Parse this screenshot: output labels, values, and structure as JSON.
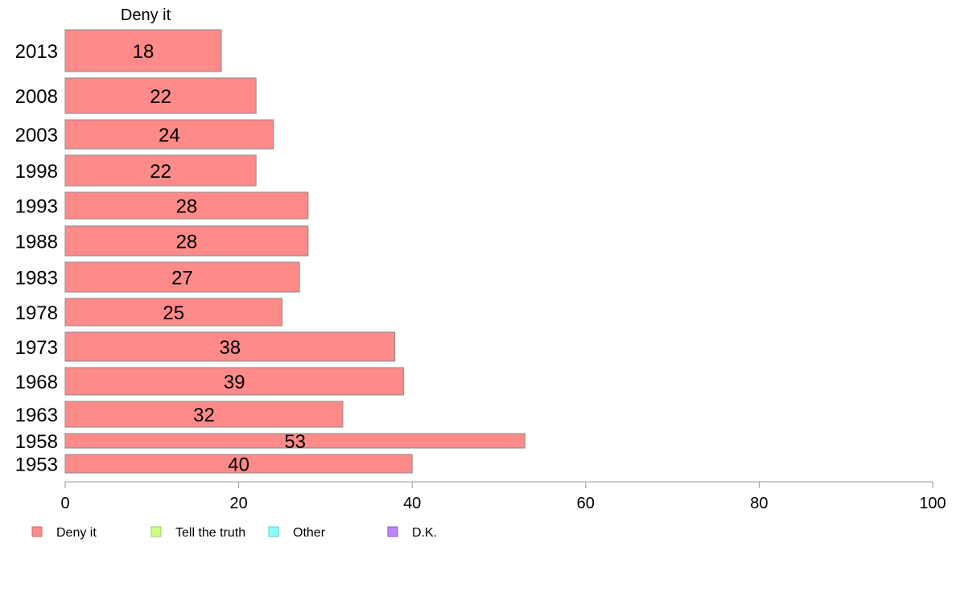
{
  "chart_data": {
    "type": "bar",
    "orientation": "horizontal",
    "panel_title": "Deny it",
    "categories": [
      "2013",
      "2008",
      "2003",
      "1998",
      "1993",
      "1988",
      "1983",
      "1978",
      "1973",
      "1968",
      "1963",
      "1958",
      "1953"
    ],
    "series": [
      {
        "name": "Deny it",
        "color": "#ff8a8a",
        "values": [
          18,
          22,
          24,
          22,
          28,
          28,
          27,
          25,
          38,
          39,
          32,
          53,
          40
        ],
        "labels": [
          "18",
          "22",
          "24",
          "22",
          "28",
          "28",
          "27",
          "25",
          "38",
          "39",
          "32",
          "53",
          "40"
        ]
      }
    ],
    "xlim": [
      0,
      100
    ],
    "xticks": [
      "0",
      "20",
      "40",
      "60",
      "80",
      "100"
    ],
    "grid": false,
    "legend": {
      "placement": "bottom-left",
      "entries": [
        {
          "label": "Deny it",
          "color": "#ff8a8a",
          "border": "#d06a6a"
        },
        {
          "label": "Tell the truth",
          "color": "#ccff88",
          "border": "#9ccc55"
        },
        {
          "label": "Other",
          "color": "#88ffff",
          "border": "#55cccc"
        },
        {
          "label": "D.K.",
          "color": "#bb88ff",
          "border": "#8855cc"
        }
      ]
    }
  }
}
